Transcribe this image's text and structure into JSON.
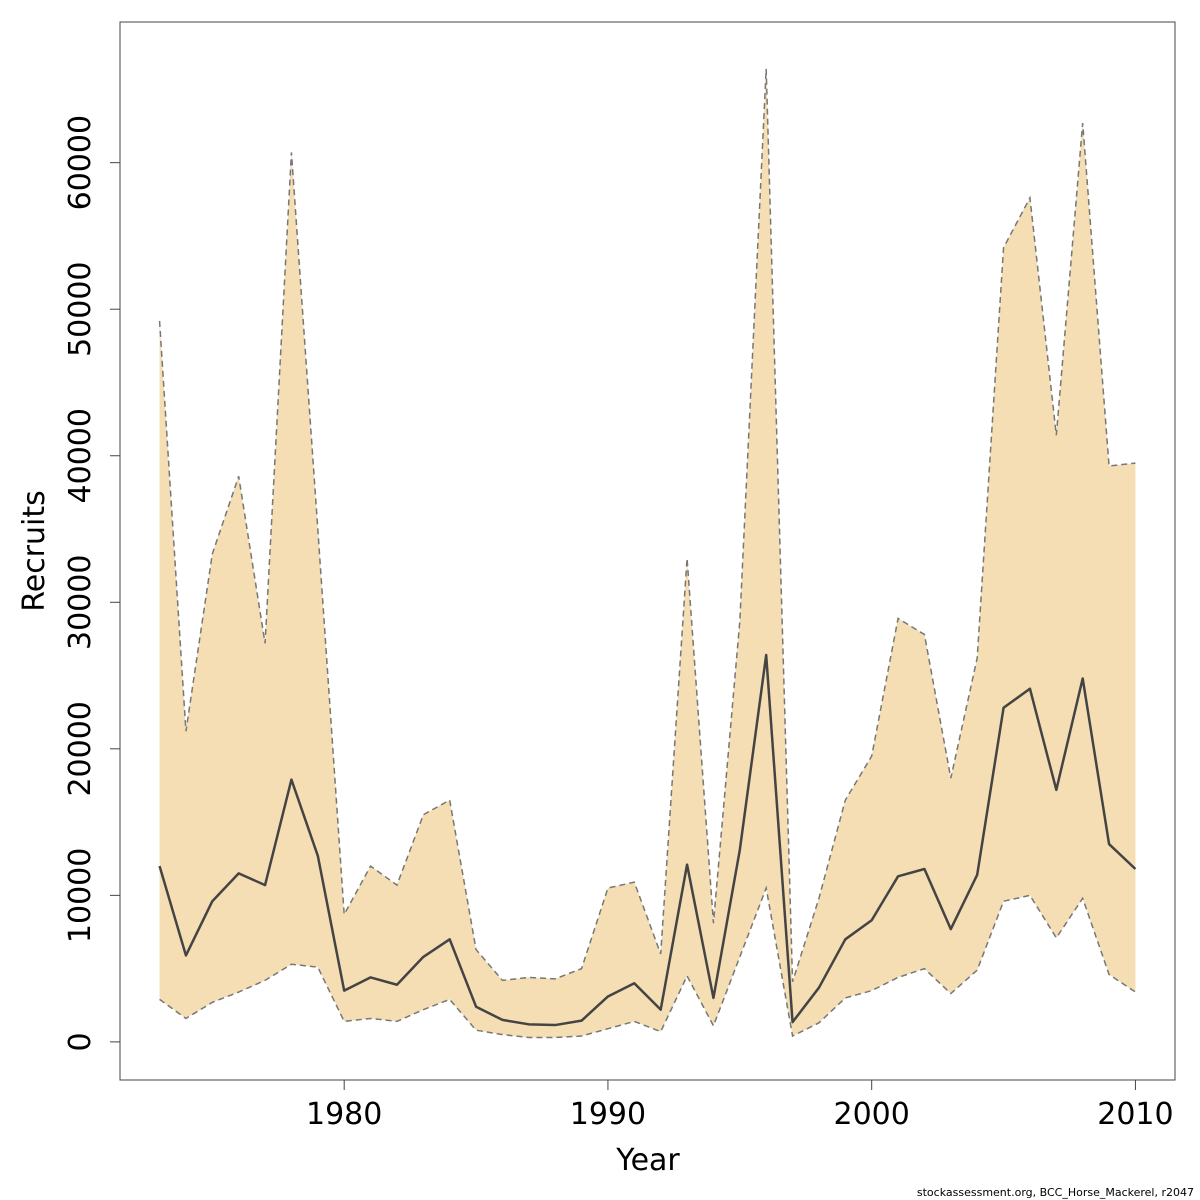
{
  "chart_data": {
    "type": "area",
    "xlabel": "Year",
    "ylabel": "Recruits",
    "xlim": [
      1971.5,
      2011.5
    ],
    "ylim": [
      -2600,
      69600
    ],
    "x_ticks": [
      1980,
      1990,
      2000,
      2010
    ],
    "y_ticks": [
      0,
      10000,
      20000,
      30000,
      40000,
      50000,
      60000
    ],
    "grid": false,
    "credit": "stockassessment.org, BCC_Horse_Mackerel, r2047",
    "colors": {
      "band": "#f5deb3",
      "line": "#444444",
      "bound": "#777777"
    },
    "x": [
      1973,
      1974,
      1975,
      1976,
      1977,
      1978,
      1979,
      1980,
      1981,
      1982,
      1983,
      1984,
      1985,
      1986,
      1987,
      1988,
      1989,
      1990,
      1991,
      1992,
      1993,
      1994,
      1995,
      1996,
      1997,
      1998,
      1999,
      2000,
      2001,
      2002,
      2003,
      2004,
      2005,
      2006,
      2007,
      2008,
      2009,
      2010
    ],
    "series": [
      {
        "values": [
          12000,
          5900,
          9600,
          11500,
          10700,
          17900,
          12700,
          3500,
          4400,
          3900,
          5800,
          7000,
          2400,
          1500,
          1200,
          1150,
          1450,
          3100,
          4000,
          2200,
          12100,
          3000,
          13100,
          26400,
          1350,
          3700,
          7000,
          8300,
          11300,
          11800,
          7700,
          11400,
          22800,
          24100,
          17200,
          24800,
          13500,
          11800
        ]
      },
      {
        "values": [
          49200,
          21200,
          33300,
          38600,
          27200,
          60700,
          35000,
          8700,
          12000,
          10700,
          15500,
          16500,
          6300,
          4200,
          4400,
          4300,
          5000,
          10500,
          10900,
          6000,
          33000,
          8100,
          28700,
          66400,
          4100,
          9800,
          16500,
          19500,
          28900,
          27800,
          18000,
          26200,
          54200,
          57600,
          41400,
          62700,
          39300,
          39500
        ]
      },
      {
        "values": [
          2900,
          1600,
          2700,
          3400,
          4200,
          5300,
          5100,
          1400,
          1600,
          1400,
          2200,
          2900,
          800,
          500,
          300,
          300,
          400,
          900,
          1400,
          700,
          4500,
          1100,
          5800,
          10500,
          400,
          1300,
          3000,
          3500,
          4400,
          5000,
          3300,
          4900,
          9600,
          10000,
          7100,
          9800,
          4600,
          3400
        ]
      }
    ]
  }
}
